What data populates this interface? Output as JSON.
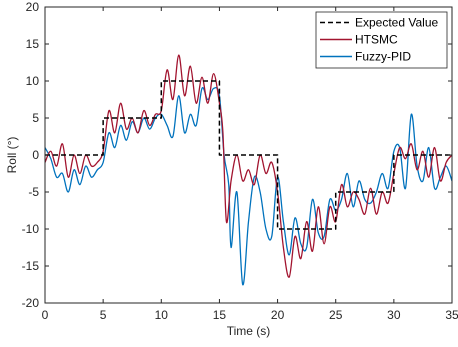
{
  "chart_data": {
    "type": "line",
    "title": "",
    "xlabel": "Time (s)",
    "ylabel": "Roll (°)",
    "xlim": [
      0,
      35
    ],
    "ylim": [
      -20,
      20
    ],
    "x_ticks": [
      0,
      5,
      10,
      15,
      20,
      25,
      30,
      35
    ],
    "y_ticks": [
      -20,
      -15,
      -10,
      -5,
      0,
      5,
      10,
      15,
      20
    ],
    "grid": false,
    "legend_position": "top-right",
    "series": [
      {
        "name": "Expected Value",
        "color": "#000000",
        "dash": "dashed",
        "x": [
          0,
          5,
          5,
          10,
          10,
          15,
          15,
          20,
          20,
          25,
          25,
          30,
          30,
          35
        ],
        "y": [
          0,
          0,
          5,
          5,
          10,
          10,
          0,
          0,
          -10,
          -10,
          -5,
          -5,
          0,
          0
        ]
      },
      {
        "name": "HTSMC",
        "color": "#A2142F",
        "dash": "solid",
        "x": [
          0,
          0.5,
          1,
          1.5,
          2,
          2.5,
          3,
          3.5,
          4,
          4.5,
          5,
          5.5,
          6,
          6.5,
          7,
          7.5,
          8,
          8.5,
          9,
          9.5,
          10,
          10.5,
          11,
          11.5,
          12,
          12.5,
          13,
          13.5,
          14,
          14.5,
          15,
          15.3,
          15.6,
          16,
          16.5,
          17,
          17.5,
          18,
          18.5,
          19,
          19.5,
          20,
          20.5,
          21,
          21.5,
          22,
          22.5,
          23,
          23.5,
          24,
          24.5,
          25,
          25.5,
          26,
          26.5,
          27,
          27.5,
          28,
          28.5,
          29,
          29.5,
          30,
          30.5,
          31,
          31.5,
          32,
          32.5,
          33,
          33.5,
          34,
          34.5,
          35
        ],
        "y": [
          -1,
          0.5,
          -1.5,
          1.5,
          -3,
          0,
          -2.5,
          0,
          -1.5,
          -1,
          0.5,
          6,
          3,
          7,
          3.5,
          5,
          3,
          6,
          4,
          5.5,
          6,
          11.5,
          7.5,
          13.5,
          8,
          12,
          7,
          10.5,
          7,
          11,
          7,
          3,
          -9,
          -3.5,
          0,
          -3.5,
          -2,
          -4,
          0,
          -2.5,
          -1,
          -5,
          -12.5,
          -16.5,
          -11,
          -14,
          -9,
          -13,
          -7,
          -12,
          -7,
          -9,
          -4,
          -7,
          -5,
          -6,
          -8,
          -4.5,
          -8,
          -5,
          -6.5,
          -2.5,
          1,
          -0.5,
          1.5,
          -2,
          0.5,
          -3,
          1,
          -3.5,
          -1,
          0
        ]
      },
      {
        "name": "Fuzzy-PID",
        "color": "#0072BD",
        "dash": "solid",
        "x": [
          0,
          0.5,
          1,
          1.5,
          2,
          2.5,
          3,
          3.5,
          4,
          4.5,
          5,
          5.5,
          6,
          6.5,
          7,
          7.5,
          8,
          8.5,
          9,
          9.5,
          10,
          10.5,
          11,
          11.5,
          12,
          12.5,
          13,
          13.5,
          14,
          14.5,
          15,
          15.4,
          15.8,
          16,
          16.5,
          17,
          17.5,
          18,
          18.5,
          19,
          19.5,
          20,
          20.5,
          21,
          21.5,
          22,
          22.5,
          23,
          23.5,
          24,
          24.5,
          25,
          25.5,
          26,
          26.5,
          27,
          27.5,
          28,
          28.5,
          29,
          29.5,
          30,
          30.5,
          31,
          31.5,
          32,
          32.5,
          33,
          33.5,
          34,
          34.5,
          35
        ],
        "y": [
          1,
          -0.5,
          -3,
          -2.5,
          -5,
          -2,
          -4,
          -1.5,
          -3,
          -2,
          -1,
          3,
          1,
          4,
          2,
          4.5,
          3,
          5,
          3.5,
          5,
          5.5,
          4,
          2.5,
          8,
          3,
          5.5,
          4,
          9,
          7.5,
          9,
          8,
          0,
          -4,
          -12.5,
          -5,
          -17.5,
          -9,
          -3,
          -5,
          -10,
          -11,
          -3,
          -9,
          -13.5,
          -8.5,
          -12,
          -12.5,
          -6,
          -10.5,
          -11,
          -6,
          -7.5,
          -6,
          -2.5,
          -7,
          -3.5,
          -6,
          -6.5,
          -5,
          -2.5,
          -4.5,
          0.5,
          1,
          -4.5,
          5.5,
          -1.5,
          -3.5,
          1,
          -4.5,
          -3,
          -1.5,
          -3.5
        ]
      }
    ]
  }
}
